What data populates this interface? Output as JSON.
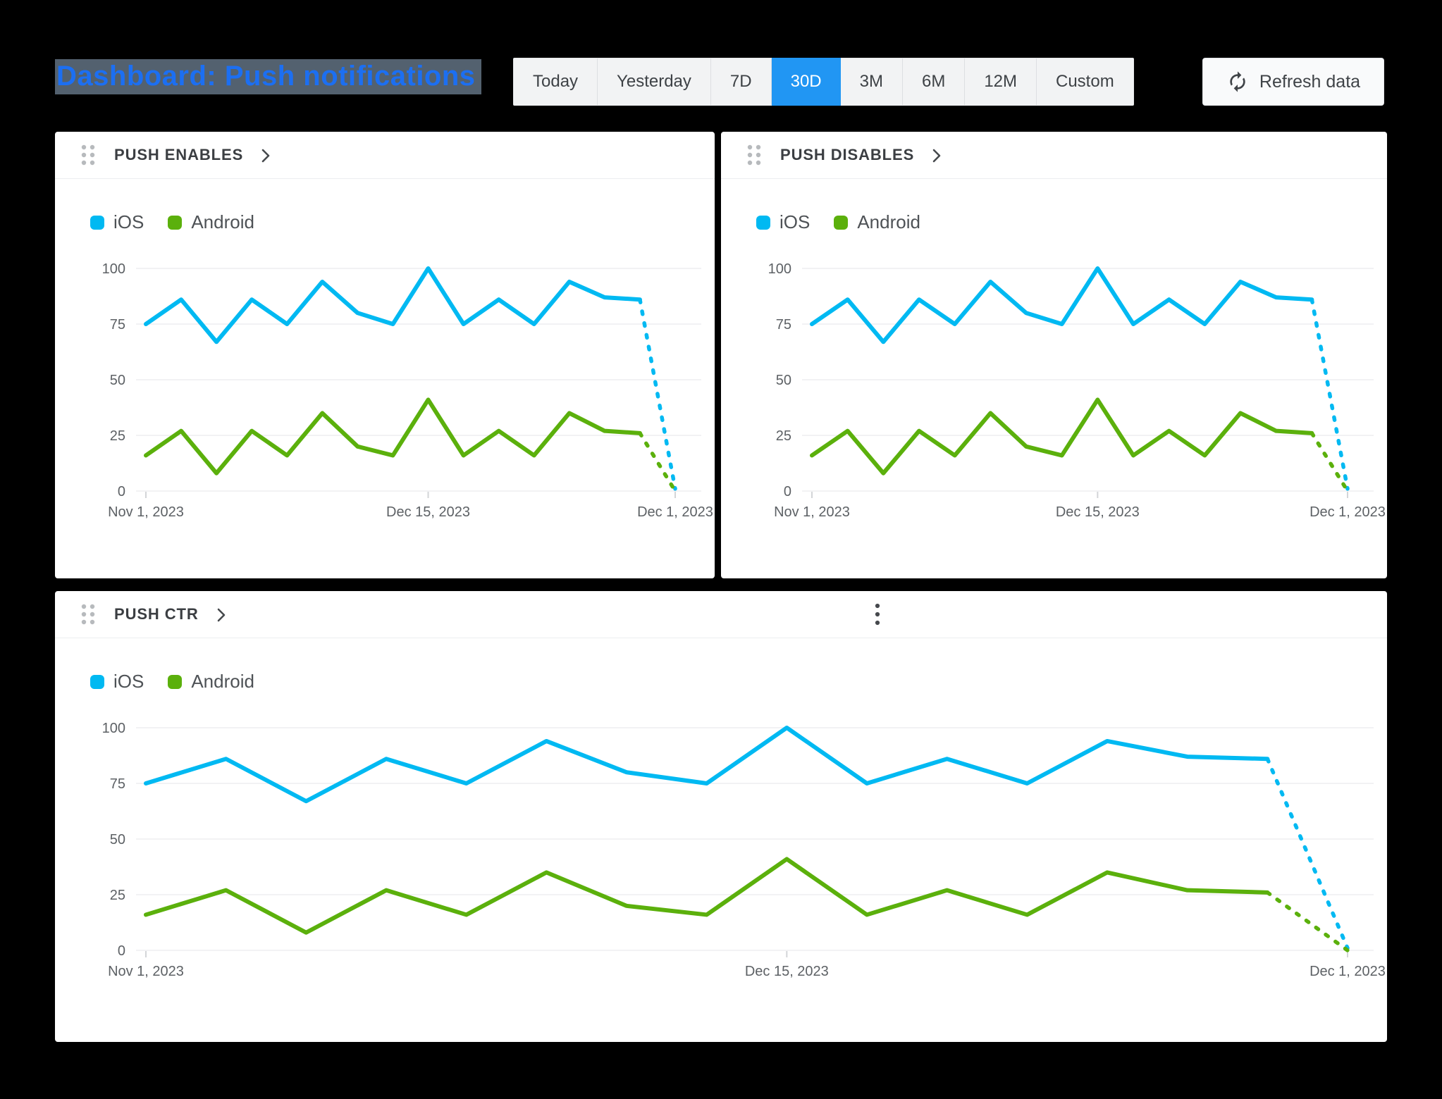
{
  "page_title": {
    "text": "Dashboard: Push notifications"
  },
  "toolbar": {
    "range_options": [
      "Today",
      "Yesterday",
      "7D",
      "30D",
      "3M",
      "6M",
      "12M",
      "Custom"
    ],
    "active_range": "30D",
    "active_color": "#2196f3",
    "refresh_label": "Refresh data"
  },
  "cards": [
    {
      "title": "PUSH ENABLES",
      "has_menu": false
    },
    {
      "title": "PUSH DISABLES",
      "has_menu": false
    },
    {
      "title": "PUSH CTR",
      "has_menu": true
    }
  ],
  "chart_data": [
    {
      "type": "line",
      "title": "PUSH ENABLES",
      "legend_position": "top-left",
      "grid": "horizontal",
      "ylim": [
        0,
        100
      ],
      "yticks": [
        0,
        25,
        50,
        75,
        100
      ],
      "n_points": 16,
      "x_tick_labels": [
        {
          "index": 0,
          "label": "Nov 1, 2023"
        },
        {
          "index": 8,
          "label": "Dec 15, 2023"
        },
        {
          "index": 15,
          "label": "Dec 1, 2023"
        }
      ],
      "series": [
        {
          "name": "iOS",
          "color": "#00b9f2",
          "values": [
            75,
            86,
            67,
            86,
            75,
            94,
            80,
            75,
            100,
            75,
            86,
            75,
            94,
            87,
            86,
            1
          ],
          "dashed_from_index": 14
        },
        {
          "name": "Android",
          "color": "#5bb00c",
          "values": [
            16,
            27,
            8,
            27,
            16,
            35,
            20,
            16,
            41,
            16,
            27,
            16,
            35,
            27,
            26,
            0
          ],
          "dashed_from_index": 14
        }
      ]
    },
    {
      "type": "line",
      "title": "PUSH DISABLES",
      "legend_position": "top-left",
      "grid": "horizontal",
      "ylim": [
        0,
        100
      ],
      "yticks": [
        0,
        25,
        50,
        75,
        100
      ],
      "n_points": 16,
      "x_tick_labels": [
        {
          "index": 0,
          "label": "Nov 1, 2023"
        },
        {
          "index": 8,
          "label": "Dec 15, 2023"
        },
        {
          "index": 15,
          "label": "Dec 1, 2023"
        }
      ],
      "series": [
        {
          "name": "iOS",
          "color": "#00b9f2",
          "values": [
            75,
            86,
            67,
            86,
            75,
            94,
            80,
            75,
            100,
            75,
            86,
            75,
            94,
            87,
            86,
            1
          ],
          "dashed_from_index": 14
        },
        {
          "name": "Android",
          "color": "#5bb00c",
          "values": [
            16,
            27,
            8,
            27,
            16,
            35,
            20,
            16,
            41,
            16,
            27,
            16,
            35,
            27,
            26,
            0
          ],
          "dashed_from_index": 14
        }
      ]
    },
    {
      "type": "line",
      "title": "PUSH CTR",
      "legend_position": "top-left",
      "grid": "horizontal",
      "ylim": [
        0,
        100
      ],
      "yticks": [
        0,
        25,
        50,
        75,
        100
      ],
      "n_points": 16,
      "x_tick_labels": [
        {
          "index": 0,
          "label": "Nov 1, 2023"
        },
        {
          "index": 8,
          "label": "Dec 15, 2023"
        },
        {
          "index": 15,
          "label": "Dec 1, 2023"
        }
      ],
      "series": [
        {
          "name": "iOS",
          "color": "#00b9f2",
          "values": [
            75,
            86,
            67,
            86,
            75,
            94,
            80,
            75,
            100,
            75,
            86,
            75,
            94,
            87,
            86,
            1
          ],
          "dashed_from_index": 14
        },
        {
          "name": "Android",
          "color": "#5bb00c",
          "values": [
            16,
            27,
            8,
            27,
            16,
            35,
            20,
            16,
            41,
            16,
            27,
            16,
            35,
            27,
            26,
            0
          ],
          "dashed_from_index": 14
        }
      ]
    }
  ]
}
